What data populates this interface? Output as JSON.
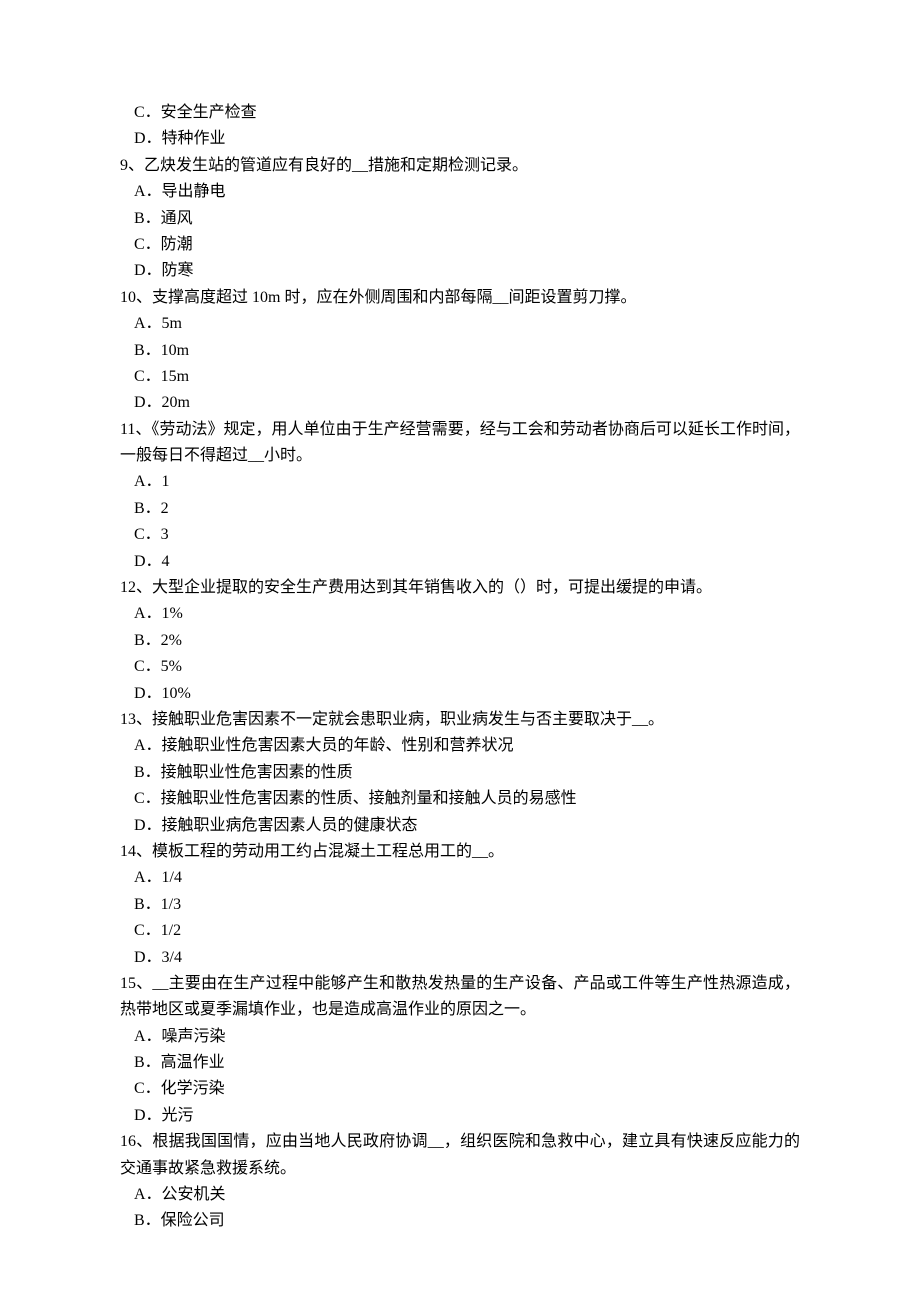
{
  "typography": {
    "font_family": "SimSun",
    "font_size_pt": 12,
    "line_height": 1.65,
    "text_color": "#000000",
    "background_color": "#ffffff"
  },
  "q8_options": {
    "c": "C．安全生产检查",
    "d": "D．特种作业"
  },
  "q9": {
    "text": "9、乙炔发生站的管道应有良好的__措施和定期检测记录。",
    "a": "A．导出静电",
    "b": "B．通风",
    "c": "C．防潮",
    "d": "D．防寒"
  },
  "q10": {
    "text": "10、支撑高度超过 10m 时，应在外侧周围和内部每隔__间距设置剪刀撑。",
    "a": "A．5m",
    "b": "B．10m",
    "c": "C．15m",
    "d": "D．20m"
  },
  "q11": {
    "text": "11、《劳动法》规定，用人单位由于生产经营需要，经与工会和劳动者协商后可以延长工作时间，一般每日不得超过__小时。",
    "a": "A．1",
    "b": "B．2",
    "c": "C．3",
    "d": "D．4"
  },
  "q12": {
    "text": "12、大型企业提取的安全生产费用达到其年销售收入的（）时，可提出缓提的申请。",
    "a": "A．1%",
    "b": "B．2%",
    "c": "C．5%",
    "d": "D．10%"
  },
  "q13": {
    "text": "13、接触职业危害因素不一定就会患职业病，职业病发生与否主要取决于__。",
    "a": "A．接触职业性危害因素大员的年龄、性别和营养状况",
    "b": "B．接触职业性危害因素的性质",
    "c": "C．接触职业性危害因素的性质、接触剂量和接触人员的易感性",
    "d": "D．接触职业病危害因素人员的健康状态"
  },
  "q14": {
    "text": "14、模板工程的劳动用工约占混凝土工程总用工的__。",
    "a": "A．1/4",
    "b": "B．1/3",
    "c": "C．1/2",
    "d": "D．3/4"
  },
  "q15": {
    "text": "15、__主要由在生产过程中能够产生和散热发热量的生产设备、产品或工件等生产性热源造成，热带地区或夏季漏填作业，也是造成高温作业的原因之一。",
    "a": "A．噪声污染",
    "b": "B．高温作业",
    "c": "C．化学污染",
    "d": "D．光污"
  },
  "q16": {
    "text": "16、根据我国国情，应由当地人民政府协调__，组织医院和急救中心，建立具有快速反应能力的交通事故紧急救援系统。",
    "a": "A．公安机关",
    "b": "B．保险公司"
  }
}
